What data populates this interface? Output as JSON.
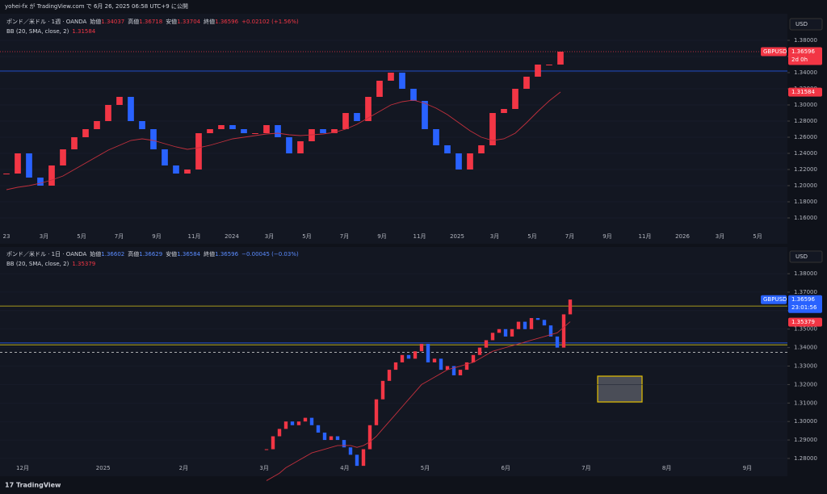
{
  "header": "yohei-fx が TradingView.com で 6月 26, 2025 06:58 UTC+9 に公開",
  "footer": "TradingView",
  "chart_data": [
    {
      "type": "candlestick",
      "symbol": "ポンド／米ドル · 1週 · OANDA",
      "legend": [
        {
          "k": "始値",
          "v": "1.34037"
        },
        {
          "k": "高値",
          "v": "1.36718"
        },
        {
          "k": "安値",
          "v": "1.33704"
        },
        {
          "k": "終値",
          "v": "1.36596"
        }
      ],
      "change": "+0.02102 (+1.56%)",
      "indicator": "BB (20, SMA, close, 2)",
      "indicator_value": "1.31584",
      "currency": "USD",
      "ylim": [
        1.145,
        1.408
      ],
      "yticks": [
        {
          "value": 1.16,
          "label": "1.16000"
        },
        {
          "value": 1.18,
          "label": "1.18000"
        },
        {
          "value": 1.2,
          "label": "1.20000"
        },
        {
          "value": 1.22,
          "label": "1.22000"
        },
        {
          "value": 1.24,
          "label": "1.24000"
        },
        {
          "value": 1.26,
          "label": "1.26000"
        },
        {
          "value": 1.28,
          "label": "1.28000"
        },
        {
          "value": 1.3,
          "label": "1.30000"
        },
        {
          "value": 1.32,
          "label": "1.32000"
        },
        {
          "value": 1.34,
          "label": "1.34000"
        },
        {
          "value": 1.36,
          "label": "1.36000"
        },
        {
          "value": 1.38,
          "label": "1.38000"
        }
      ],
      "x_axis_labels": [
        "23",
        "3月",
        "5月",
        "7月",
        "9月",
        "11月",
        "2024",
        "3月",
        "5月",
        "7月",
        "9月",
        "11月",
        "2025",
        "3月",
        "5月",
        "7月",
        "9月",
        "11月",
        "2026",
        "3月",
        "5月"
      ],
      "closes": [
        1.215,
        1.24,
        1.21,
        1.2,
        1.225,
        1.245,
        1.26,
        1.27,
        1.28,
        1.3,
        1.31,
        1.28,
        1.27,
        1.245,
        1.225,
        1.215,
        1.22,
        1.265,
        1.27,
        1.275,
        1.27,
        1.265,
        1.265,
        1.275,
        1.26,
        1.24,
        1.255,
        1.27,
        1.265,
        1.27,
        1.29,
        1.28,
        1.31,
        1.33,
        1.34,
        1.32,
        1.305,
        1.27,
        1.25,
        1.24,
        1.22,
        1.24,
        1.25,
        1.29,
        1.295,
        1.32,
        1.335,
        1.35,
        1.35,
        1.366
      ],
      "bb": [
        1.195,
        1.198,
        1.2,
        1.203,
        1.207,
        1.212,
        1.22,
        1.228,
        1.236,
        1.244,
        1.25,
        1.256,
        1.258,
        1.256,
        1.252,
        1.248,
        1.245,
        1.247,
        1.25,
        1.254,
        1.258,
        1.26,
        1.262,
        1.264,
        1.265,
        1.263,
        1.262,
        1.263,
        1.264,
        1.266,
        1.27,
        1.276,
        1.284,
        1.292,
        1.3,
        1.304,
        1.306,
        1.302,
        1.296,
        1.288,
        1.278,
        1.268,
        1.26,
        1.256,
        1.258,
        1.265,
        1.278,
        1.292,
        1.305,
        1.316
      ],
      "up_color": "#f23645",
      "down_color": "#2962ff",
      "bb_color": "#c2303d",
      "levels": [
        {
          "value": 1.342,
          "color": "#2962ff",
          "dash": "none"
        },
        {
          "value": 1.366,
          "color": "#f23645",
          "dash": "1,2"
        }
      ],
      "price_tags": [
        {
          "name": "GBPUSD",
          "value": 1.36596,
          "countdown": "2d 0h",
          "color": "#f23645"
        },
        {
          "value": 1.31584,
          "color": "#f23645"
        }
      ]
    },
    {
      "type": "candlestick",
      "symbol": "ポンド／米ドル · 1日 · OANDA",
      "legend": [
        {
          "k": "始値",
          "v": "1.36602"
        },
        {
          "k": "高値",
          "v": "1.36629"
        },
        {
          "k": "安値",
          "v": "1.36584"
        },
        {
          "k": "終値",
          "v": "1.36596"
        }
      ],
      "change": "−0.00045 (−0.03%)",
      "indicator": "BB (20, SMA, close, 2)",
      "indicator_value": "1.35379",
      "currency": "USD",
      "ylim": [
        1.2778,
        1.3927
      ],
      "yticks": [
        {
          "value": 1.28,
          "label": "1.28000"
        },
        {
          "value": 1.29,
          "label": "1.29000"
        },
        {
          "value": 1.3,
          "label": "1.30000"
        },
        {
          "value": 1.31,
          "label": "1.31000"
        },
        {
          "value": 1.32,
          "label": "1.32000"
        },
        {
          "value": 1.33,
          "label": "1.33000"
        },
        {
          "value": 1.34,
          "label": "1.34000"
        },
        {
          "value": 1.35,
          "label": "1.35000"
        },
        {
          "value": 1.36,
          "label": "1.36000"
        },
        {
          "value": 1.37,
          "label": "1.37000"
        },
        {
          "value": 1.38,
          "label": "1.38000"
        }
      ],
      "x_axis_labels": [
        "12月",
        "2025",
        "2月",
        "3月",
        "4月",
        "5月",
        "6月",
        "7月",
        "8月",
        "9月"
      ],
      "closes": [
        1.285,
        1.292,
        1.296,
        1.3,
        1.298,
        1.3,
        1.302,
        1.298,
        1.294,
        1.29,
        1.292,
        1.29,
        1.286,
        1.282,
        1.276,
        1.285,
        1.298,
        1.312,
        1.322,
        1.328,
        1.332,
        1.336,
        1.334,
        1.338,
        1.342,
        1.332,
        1.334,
        1.328,
        1.33,
        1.325,
        1.328,
        1.332,
        1.336,
        1.34,
        1.344,
        1.348,
        1.35,
        1.346,
        1.35,
        1.354,
        1.35,
        1.356,
        1.355,
        1.352,
        1.346,
        1.34,
        1.358,
        1.366
      ],
      "bb": [
        1.268,
        1.27,
        1.272,
        1.275,
        1.277,
        1.279,
        1.281,
        1.283,
        1.284,
        1.285,
        1.286,
        1.287,
        1.287,
        1.287,
        1.286,
        1.287,
        1.289,
        1.292,
        1.296,
        1.3,
        1.304,
        1.308,
        1.312,
        1.316,
        1.32,
        1.322,
        1.324,
        1.326,
        1.328,
        1.329,
        1.33,
        1.331,
        1.332,
        1.334,
        1.336,
        1.338,
        1.339,
        1.34,
        1.341,
        1.342,
        1.343,
        1.344,
        1.345,
        1.346,
        1.347,
        1.348,
        1.351,
        1.354
      ],
      "up_color": "#f23645",
      "down_color": "#2962ff",
      "bb_color": "#c2303d",
      "levels": [
        {
          "value": 1.3625,
          "color": "#d4c21b",
          "dash": "none"
        },
        {
          "value": 1.3425,
          "color": "#2962ff",
          "dash": "none"
        },
        {
          "value": 1.3415,
          "color": "#d4c21b",
          "dash": "none"
        },
        {
          "value": 1.3375,
          "color": "#e0e0e0",
          "dash": "3,3"
        }
      ],
      "price_tags": [
        {
          "name": "GBPUSD",
          "value": 1.36596,
          "countdown": "23:01:56",
          "color": "#2962ff"
        },
        {
          "value": 1.35379,
          "color": "#f23645"
        }
      ]
    }
  ]
}
